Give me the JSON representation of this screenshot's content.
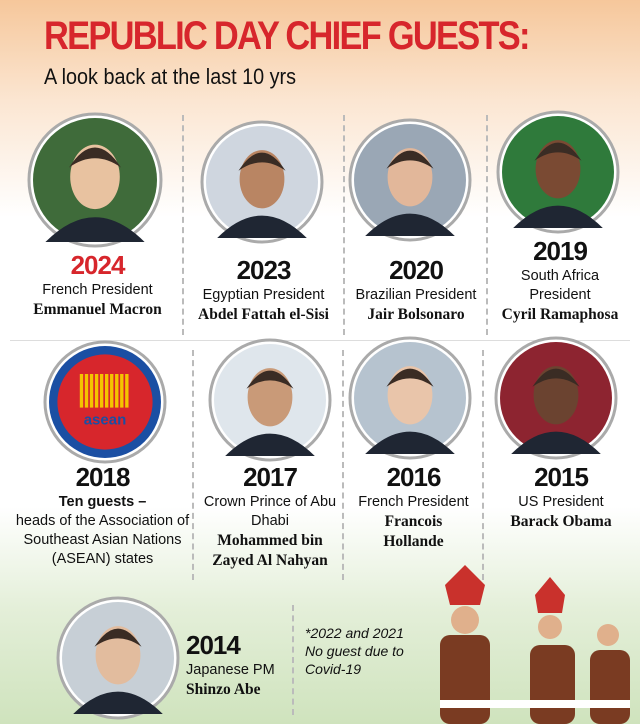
{
  "header": {
    "title": "REPUBLIC DAY CHIEF GUESTS:",
    "subtitle": "A look back at the last 10 yrs"
  },
  "guests": [
    {
      "year": "2024",
      "role": "French President",
      "name": "Emmanuel Macron"
    },
    {
      "year": "2023",
      "role": "Egyptian President",
      "name": "Abdel Fattah el-Sisi"
    },
    {
      "year": "2020",
      "role": "Brazilian President",
      "name": "Jair Bolsonaro"
    },
    {
      "year": "2019",
      "role": "South Africa President",
      "name": "Cyril Ramaphosa"
    },
    {
      "year": "2018",
      "role_lead": "Ten guests –",
      "role": "heads of the Association of Southeast Asian Nations (ASEAN) states",
      "logo_text": "asean"
    },
    {
      "year": "2017",
      "role": "Crown Prince of Abu Dhabi",
      "name": "Mohammed bin Zayed Al Nahyan"
    },
    {
      "year": "2016",
      "role": "French President",
      "name": "Francois Hollande"
    },
    {
      "year": "2015",
      "role": "US President",
      "name": "Barack Obama"
    },
    {
      "year": "2014",
      "role": "Japanese PM",
      "name": "Shinzo Abe"
    }
  ],
  "note": "*2022 and 2021 No guest due to Covid-19"
}
